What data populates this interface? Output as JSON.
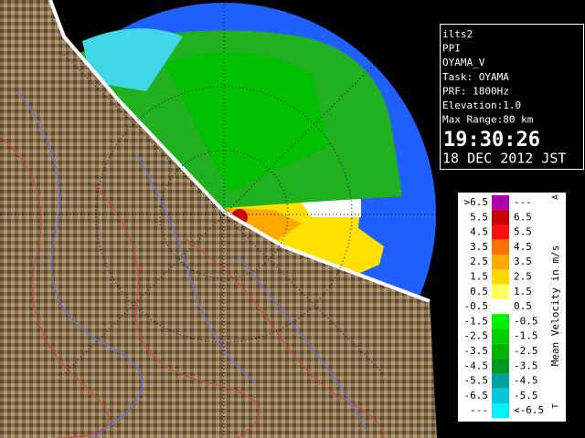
{
  "info": {
    "lines": [
      "ilts2",
      "PPI",
      "OYAMA_V",
      "Task: OYAMA",
      "PRF: 1800Hz",
      "Elevation:1.0",
      "Max Range:80 km"
    ],
    "time": "19:30:26",
    "date": "18 DEC 2012 JST"
  },
  "legend": {
    "title": "Mean Velocity in m/s",
    "top_mark": "A",
    "bottom_mark": "T",
    "rows": [
      {
        "low": ">6.5",
        "high": "---",
        "color": "#b000b0"
      },
      {
        "low": "5.5",
        "high": "6.5",
        "color": "#c80000"
      },
      {
        "low": "4.5",
        "high": "5.5",
        "color": "#ff1010"
      },
      {
        "low": "3.5",
        "high": "4.5",
        "color": "#ff7000"
      },
      {
        "low": "2.5",
        "high": "3.5",
        "color": "#ffa800"
      },
      {
        "low": "1.5",
        "high": "2.5",
        "color": "#ffd800"
      },
      {
        "low": "0.5",
        "high": "1.5",
        "color": "#ffff60"
      },
      {
        "low": "-0.5",
        "high": "0.5",
        "color": "#ffffff"
      },
      {
        "low": "-1.5",
        "high": "-0.5",
        "color": "#00f000"
      },
      {
        "low": "-2.5",
        "high": "-1.5",
        "color": "#00d000"
      },
      {
        "low": "-3.5",
        "high": "-2.5",
        "color": "#00b400"
      },
      {
        "low": "-4.5",
        "high": "-3.5",
        "color": "#009820"
      },
      {
        "low": "-5.5",
        "high": "-4.5",
        "color": "#00a0a0"
      },
      {
        "low": "-6.5",
        "high": "-5.5",
        "color": "#00c8d8"
      },
      {
        "low": "---",
        "high": "<-6.5",
        "color": "#00f0ff"
      }
    ]
  }
}
